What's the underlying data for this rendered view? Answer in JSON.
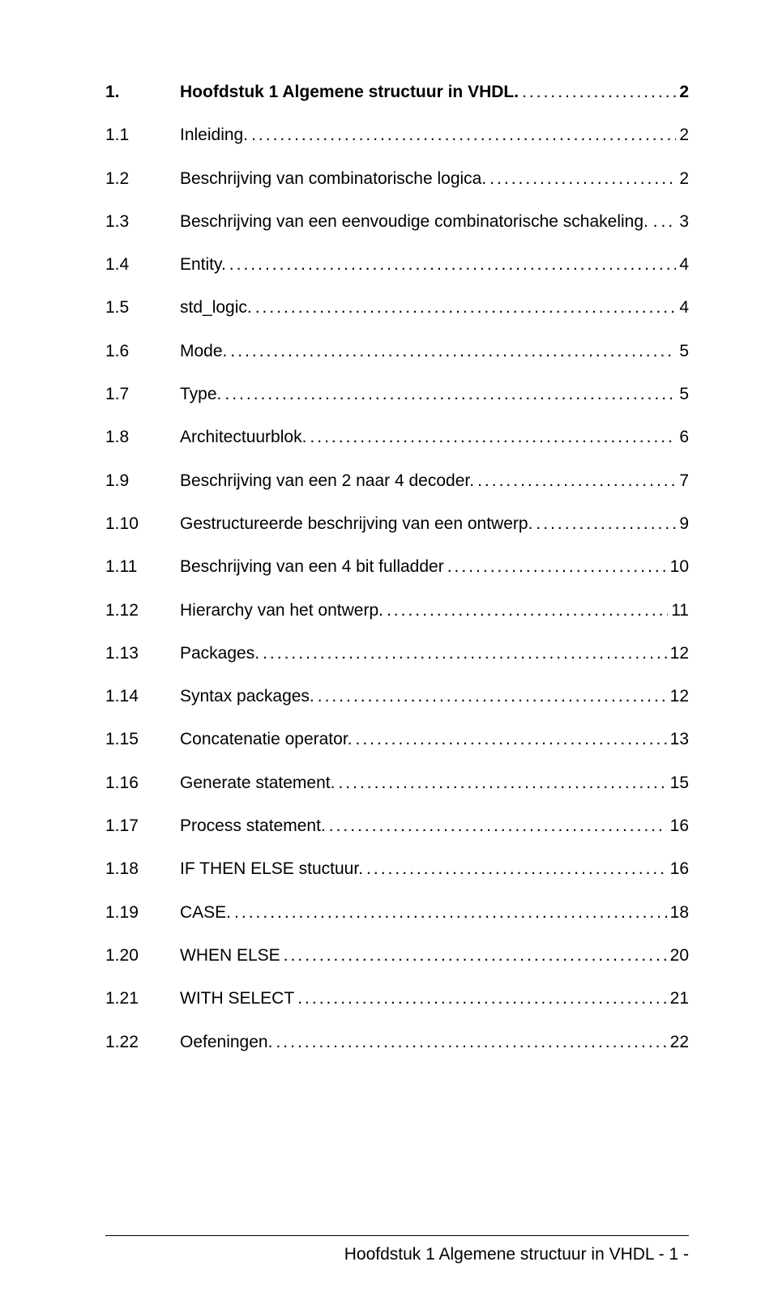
{
  "toc": [
    {
      "num": "1.",
      "label": "Hoofdstuk 1 Algemene structuur in VHDL.",
      "page": "2",
      "bold": true
    },
    {
      "num": "1.1",
      "label": "Inleiding.",
      "page": "2",
      "bold": false
    },
    {
      "num": "1.2",
      "label": "Beschrijving van combinatorische  logica.",
      "page": "2",
      "bold": false
    },
    {
      "num": "1.3",
      "label": "Beschrijving van een eenvoudige combinatorische schakeling. .",
      "page": "3",
      "bold": false
    },
    {
      "num": "1.4",
      "label": "Entity.",
      "page": "4",
      "bold": false
    },
    {
      "num": "1.5",
      "label": "std_logic.",
      "page": "4",
      "bold": false
    },
    {
      "num": "1.6",
      "label": "Mode.",
      "page": "5",
      "bold": false
    },
    {
      "num": "1.7",
      "label": "Type.",
      "page": "5",
      "bold": false
    },
    {
      "num": "1.8",
      "label": "Architectuurblok. ",
      "page": "6",
      "bold": false
    },
    {
      "num": "1.9",
      "label": "Beschrijving van een 2 naar 4 decoder.",
      "page": "7",
      "bold": false
    },
    {
      "num": "1.10",
      "label": "Gestructureerde beschrijving van een ontwerp. ",
      "page": "9",
      "bold": false
    },
    {
      "num": "1.11",
      "label": "Beschrijving van een 4 bit fulladder",
      "page": "10",
      "bold": false
    },
    {
      "num": "1.12",
      "label": "Hierarchy van het ontwerp.",
      "page": "11",
      "bold": false
    },
    {
      "num": "1.13",
      "label": "Packages.",
      "page": "12",
      "bold": false
    },
    {
      "num": "1.14",
      "label": "Syntax packages.",
      "page": "12",
      "bold": false
    },
    {
      "num": "1.15",
      "label": "Concatenatie operator.",
      "page": "13",
      "bold": false
    },
    {
      "num": "1.16",
      "label": "Generate statement.",
      "page": "15",
      "bold": false
    },
    {
      "num": "1.17",
      "label": "Process statement. ",
      "page": "16",
      "bold": false
    },
    {
      "num": "1.18",
      "label": "IF THEN ELSE stuctuur.",
      "page": "16",
      "bold": false
    },
    {
      "num": "1.19",
      "label": "CASE.",
      "page": "18",
      "bold": false
    },
    {
      "num": "1.20",
      "label": "WHEN ELSE",
      "page": "20",
      "bold": false
    },
    {
      "num": "1.21",
      "label": "WITH SELECT",
      "page": "21",
      "bold": false
    },
    {
      "num": "1.22",
      "label": "Oefeningen.",
      "page": "22",
      "bold": false
    }
  ],
  "footer": "Hoofdstuk 1 Algemene structuur in  VHDL - 1 -",
  "style": {
    "font_family": "Arial",
    "font_size_pt": 16,
    "text_color": "#000000",
    "background_color": "#ffffff",
    "leader_char": "."
  }
}
